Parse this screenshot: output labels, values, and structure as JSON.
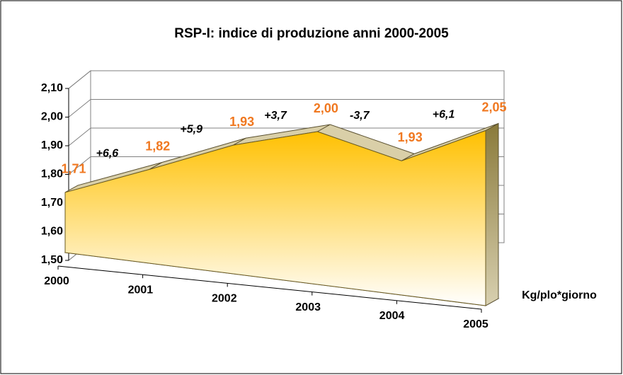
{
  "chart_data": {
    "type": "area",
    "title": "RSP-I: indice di produzione anni 2000-2005",
    "categories": [
      "2000",
      "2001",
      "2002",
      "2003",
      "2004",
      "2005"
    ],
    "series": [
      {
        "name": "Kg/plo*giorno",
        "color": "#ffc000",
        "values": [
          1.71,
          1.82,
          1.93,
          2.0,
          1.93,
          2.05
        ],
        "value_labels": [
          "1,71",
          "1,82",
          "1,93",
          "2,00",
          "1,93",
          "2,05"
        ]
      }
    ],
    "annotations": [
      "+6,6",
      "+5,9",
      "+3,7",
      "-3,7",
      "+6,1"
    ],
    "ylim": [
      1.5,
      2.1
    ],
    "yticks": [
      {
        "value": 1.5,
        "label": "1,50"
      },
      {
        "value": 1.6,
        "label": "1,60"
      },
      {
        "value": 1.7,
        "label": "1,70"
      },
      {
        "value": 1.8,
        "label": "1,80"
      },
      {
        "value": 1.9,
        "label": "1,90"
      },
      {
        "value": 2.0,
        "label": "2,00"
      },
      {
        "value": 2.1,
        "label": "2,10"
      }
    ],
    "grid": true
  }
}
